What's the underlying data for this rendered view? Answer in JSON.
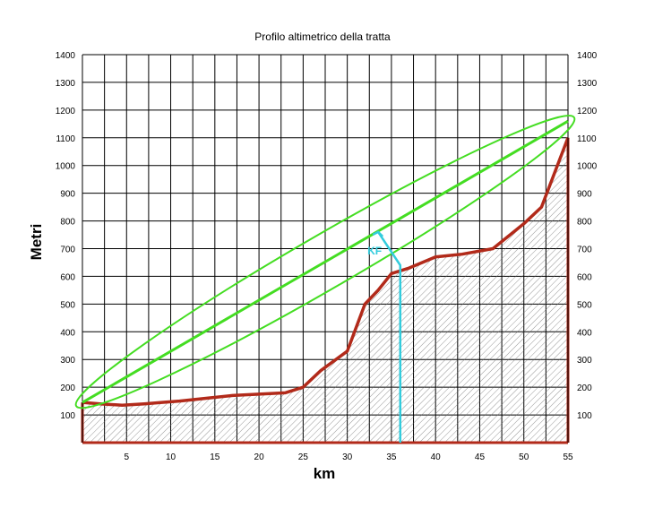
{
  "chart_data": {
    "type": "area",
    "title": "Profilo altimetrico della tratta",
    "xlabel": "km",
    "ylabel": "Metri",
    "xlim": [
      0,
      55
    ],
    "ylim": [
      0,
      1400
    ],
    "x_ticks": [
      5,
      10,
      15,
      20,
      25,
      30,
      35,
      40,
      45,
      50,
      55
    ],
    "y_ticks": [
      100,
      200,
      300,
      400,
      500,
      600,
      700,
      800,
      900,
      1000,
      1100,
      1200,
      1300,
      1400
    ],
    "grid": true,
    "series": [
      {
        "x": [
          0,
          2,
          4.5,
          7,
          9,
          11,
          14,
          17,
          20,
          23,
          25,
          27,
          30,
          32,
          33.5,
          35,
          37,
          40,
          43,
          46.5,
          50,
          52,
          55
        ],
        "values": [
          145,
          140,
          135,
          140,
          145,
          150,
          160,
          170,
          175,
          180,
          200,
          260,
          330,
          500,
          550,
          610,
          630,
          670,
          680,
          700,
          790,
          850,
          1100
        ],
        "color": "#b22a1a"
      }
    ],
    "annotations": [
      {
        "type": "trend-line",
        "x": [
          0,
          55
        ],
        "y": [
          145,
          1160
        ],
        "color": "#44dd22"
      },
      {
        "type": "ellipse",
        "color": "#44dd22"
      },
      {
        "type": "arrow",
        "x": [
          36,
          36,
          33.5
        ],
        "y": [
          0,
          640,
          760
        ],
        "label": "KF",
        "color": "#33ccdd"
      }
    ]
  }
}
